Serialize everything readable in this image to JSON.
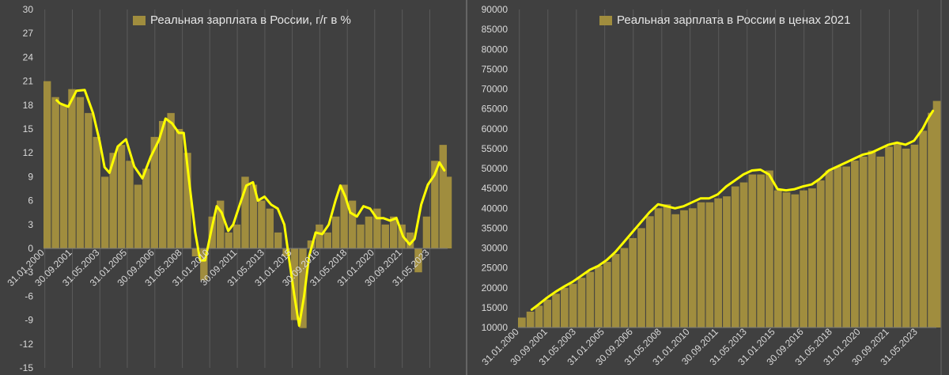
{
  "chart_data": [
    {
      "type": "bar",
      "title": "Реальная зарплата в России, г/г в %",
      "ylim": [
        -15,
        30
      ],
      "yticks": [
        -15,
        -12,
        -9,
        -6,
        -3,
        0,
        3,
        6,
        9,
        12,
        15,
        18,
        21,
        24,
        27,
        30
      ],
      "xticks": [
        "31.01.2000",
        "30.09.2001",
        "31.05.2003",
        "31.01.2005",
        "30.09.2006",
        "31.05.2008",
        "31.01.2010",
        "30.09.2011",
        "31.05.2013",
        "31.01.2015",
        "30.09.2016",
        "31.05.2018",
        "31.01.2020",
        "30.09.2021",
        "31.05.2023"
      ],
      "grid": "vertical",
      "bar_color": "#a08d3e",
      "line_color": "#ffff00",
      "series": [
        {
          "name": "Реальная зарплата в России, г/г в %",
          "kind": "bar",
          "x": [
            2000.0,
            2000.5,
            2001.0,
            2001.5,
            2002.0,
            2002.5,
            2003.0,
            2003.5,
            2004.0,
            2004.5,
            2005.0,
            2005.5,
            2006.0,
            2006.5,
            2007.0,
            2007.5,
            2008.0,
            2008.5,
            2009.0,
            2009.5,
            2010.0,
            2010.5,
            2011.0,
            2011.5,
            2012.0,
            2012.5,
            2013.0,
            2013.5,
            2014.0,
            2014.5,
            2015.0,
            2015.5,
            2016.0,
            2016.5,
            2017.0,
            2017.5,
            2018.0,
            2018.5,
            2019.0,
            2019.5,
            2020.0,
            2020.5,
            2021.0,
            2021.5,
            2022.0,
            2022.5,
            2023.0,
            2023.5,
            2024.0,
            2024.3
          ],
          "values": [
            21,
            19,
            18,
            20,
            19,
            17,
            14,
            9,
            12,
            13,
            11,
            8,
            10,
            14,
            16,
            17,
            15,
            12,
            -1,
            -4,
            4,
            6,
            2,
            3,
            9,
            8,
            6,
            5,
            2,
            -1,
            -9,
            -10,
            1,
            3,
            2,
            4,
            8,
            6,
            3,
            4,
            5,
            3,
            4,
            3,
            2,
            -3,
            4,
            11,
            13,
            9
          ]
        },
        {
          "name": "",
          "kind": "line",
          "x": [
            2000.8,
            2001.0,
            2001.5,
            2002.0,
            2002.5,
            2003.0,
            2003.4,
            2003.7,
            2004.0,
            2004.5,
            2005.0,
            2005.5,
            2006.0,
            2006.5,
            2007.0,
            2007.4,
            2007.8,
            2008.2,
            2008.5,
            2008.8,
            2009.2,
            2009.5,
            2009.8,
            2010.2,
            2010.5,
            2010.8,
            2011.2,
            2011.5,
            2011.9,
            2012.3,
            2012.7,
            2013.0,
            2013.4,
            2013.8,
            2014.2,
            2014.6,
            2014.9,
            2015.2,
            2015.5,
            2015.8,
            2016.1,
            2016.5,
            2016.9,
            2017.3,
            2017.7,
            2018.0,
            2018.3,
            2018.6,
            2019.0,
            2019.4,
            2019.8,
            2020.2,
            2020.6,
            2021.0,
            2021.4,
            2021.8,
            2022.2,
            2022.5,
            2022.9,
            2023.3,
            2023.7,
            2024.0,
            2024.3
          ],
          "values": [
            18.6,
            18.2,
            17.8,
            19.8,
            19.9,
            17.0,
            13.5,
            10.2,
            9.5,
            12.8,
            13.7,
            10.3,
            8.8,
            11.5,
            13.6,
            16.3,
            15.7,
            14.5,
            14.5,
            9.0,
            2.0,
            -1.5,
            -1.5,
            2.5,
            5.3,
            4.5,
            2.2,
            3.0,
            5.5,
            7.9,
            8.3,
            6.0,
            6.5,
            5.5,
            5.0,
            3.0,
            -1.5,
            -5.8,
            -9.7,
            -6.0,
            -1.0,
            2.0,
            1.8,
            3.0,
            6.0,
            7.9,
            6.5,
            4.5,
            4.0,
            5.3,
            5.0,
            3.8,
            3.8,
            3.5,
            3.8,
            1.5,
            0.5,
            1.2,
            5.5,
            8.0,
            9.2,
            10.8,
            9.8
          ]
        }
      ]
    },
    {
      "type": "bar",
      "title": "Реальная зарплата в России в ценах 2021",
      "ylim": [
        10000,
        90000
      ],
      "yticks": [
        "10000",
        "15000",
        "20000",
        "25000",
        "30000",
        "35000",
        "40000",
        "45000",
        "50000",
        "55000",
        "60000",
        "65000",
        "70000",
        "75000",
        "80000",
        "85000",
        "90000"
      ],
      "xticks": [
        "31.01.2000",
        "30.09.2001",
        "31.05.2003",
        "31.01.2005",
        "30.09.2006",
        "31.05.2008",
        "31.01.2010",
        "30.09.2011",
        "31.05.2013",
        "31.01.2015",
        "30.09.2016",
        "31.05.2018",
        "31.01.2020",
        "30.09.2021",
        "31.05.2023"
      ],
      "grid": "vertical",
      "bar_color": "#a08d3e",
      "line_color": "#ffff00",
      "series": [
        {
          "name": "Реальная зарплата в России в ценах 2021",
          "kind": "bar",
          "x": [
            2000.0,
            2000.5,
            2001.0,
            2001.5,
            2002.0,
            2002.5,
            2003.0,
            2003.5,
            2004.0,
            2004.5,
            2005.0,
            2005.5,
            2006.0,
            2006.5,
            2007.0,
            2007.5,
            2008.0,
            2008.5,
            2009.0,
            2009.5,
            2010.0,
            2010.5,
            2011.0,
            2011.5,
            2012.0,
            2012.5,
            2013.0,
            2013.5,
            2014.0,
            2014.5,
            2015.0,
            2015.5,
            2016.0,
            2016.5,
            2017.0,
            2017.5,
            2018.0,
            2018.5,
            2019.0,
            2019.5,
            2020.0,
            2020.5,
            2021.0,
            2021.5,
            2022.0,
            2022.5,
            2023.0,
            2023.5,
            2024.0,
            2024.3
          ],
          "values": [
            12500,
            14000,
            15500,
            17000,
            18500,
            20000,
            21000,
            22500,
            24000,
            25500,
            26500,
            28500,
            30000,
            32500,
            35000,
            38000,
            40000,
            41000,
            38500,
            39500,
            40000,
            41500,
            41500,
            42500,
            43000,
            45500,
            46500,
            48500,
            48500,
            49500,
            44500,
            44000,
            43500,
            44500,
            45000,
            47000,
            49500,
            50500,
            50500,
            52000,
            53000,
            54500,
            53000,
            55500,
            56500,
            55000,
            56000,
            59500,
            64000,
            67000
          ]
        },
        {
          "name": "",
          "kind": "line",
          "x": [
            2000.8,
            2001.2,
            2001.7,
            2002.2,
            2002.7,
            2003.2,
            2003.7,
            2004.2,
            2004.7,
            2005.2,
            2005.7,
            2006.2,
            2006.7,
            2007.2,
            2007.7,
            2008.2,
            2008.7,
            2009.2,
            2009.7,
            2010.2,
            2010.7,
            2011.2,
            2011.7,
            2012.2,
            2012.7,
            2013.2,
            2013.7,
            2014.2,
            2014.7,
            2015.2,
            2015.7,
            2016.2,
            2016.7,
            2017.2,
            2017.7,
            2018.2,
            2018.7,
            2019.2,
            2019.7,
            2020.2,
            2020.7,
            2021.2,
            2021.7,
            2022.2,
            2022.7,
            2023.2,
            2023.7,
            2024.0,
            2024.3
          ],
          "values": [
            14500,
            15800,
            17500,
            19000,
            20300,
            21500,
            23000,
            24500,
            25500,
            27000,
            29000,
            31500,
            34000,
            36500,
            39000,
            41000,
            40500,
            40000,
            40500,
            41500,
            42500,
            42500,
            43500,
            45500,
            47000,
            48500,
            49500,
            49700,
            48500,
            44800,
            44500,
            44800,
            45500,
            46000,
            47500,
            49500,
            50500,
            51500,
            52500,
            53500,
            54000,
            55000,
            56000,
            56500,
            56000,
            57000,
            60000,
            62500,
            64500
          ]
        }
      ]
    }
  ]
}
